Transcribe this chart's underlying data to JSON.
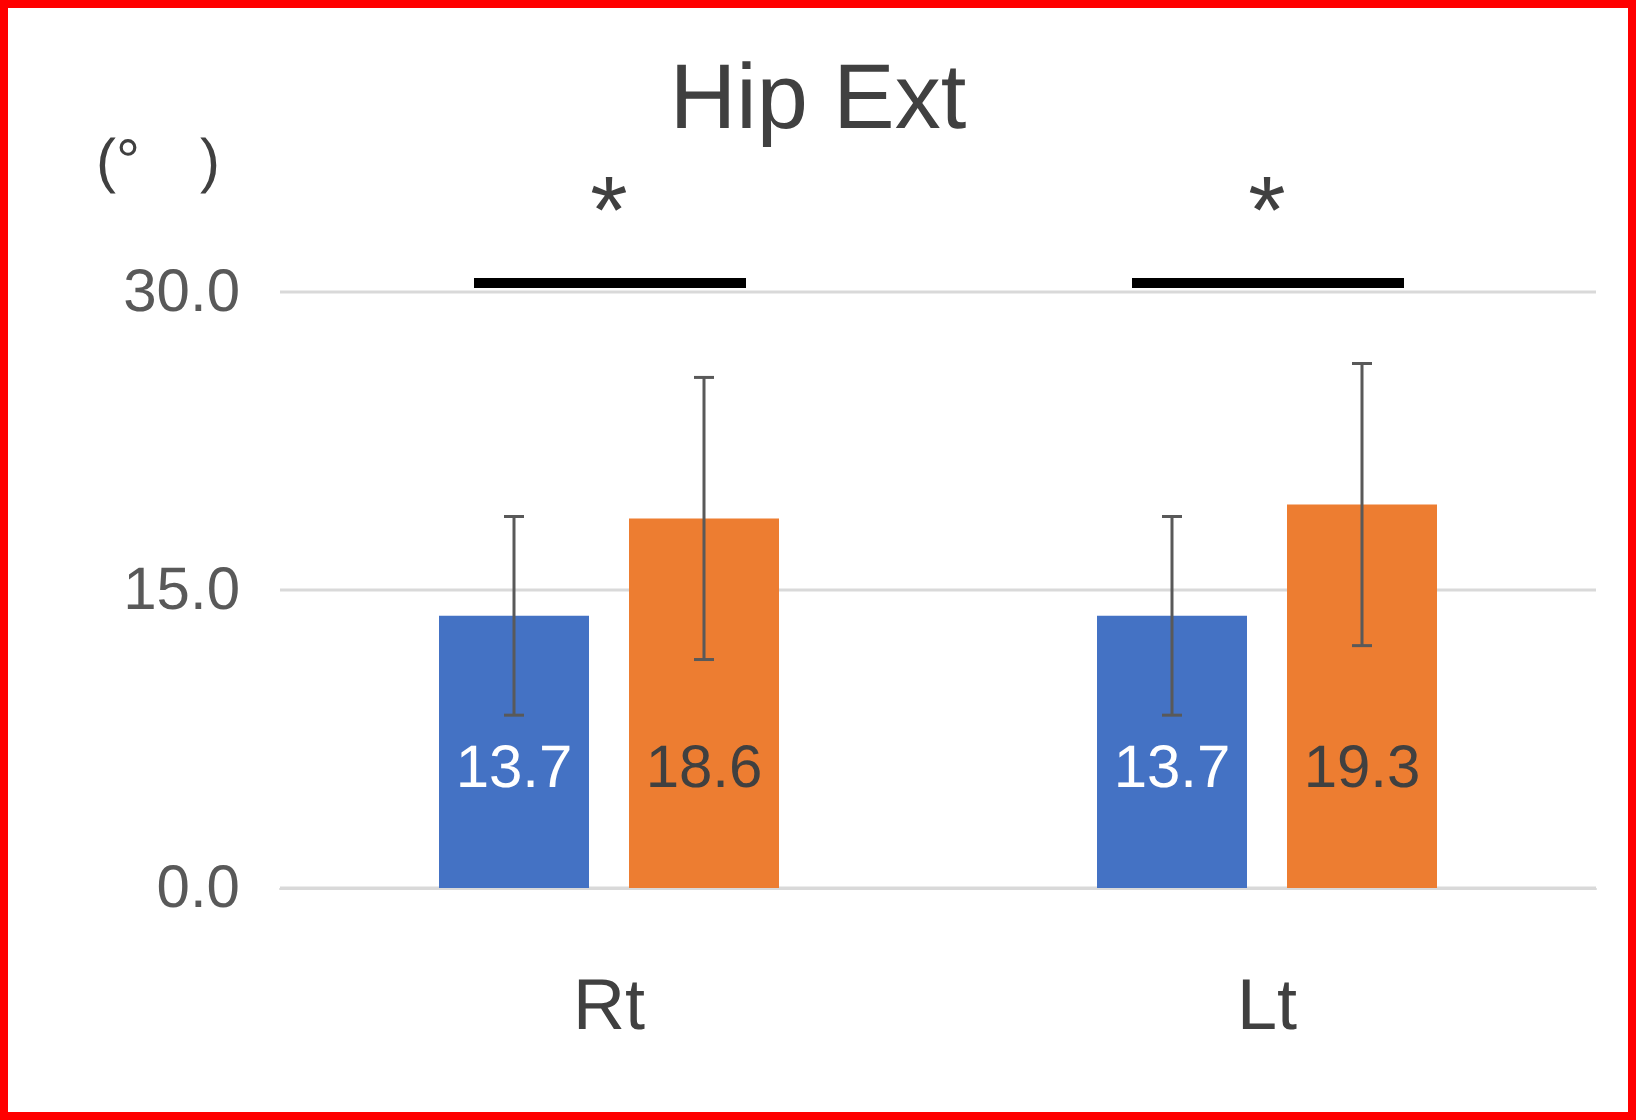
{
  "chart_data": {
    "type": "bar",
    "title": "Hip Ext",
    "ylabel": "(°　)",
    "categories": [
      "Rt",
      "Lt"
    ],
    "series": [
      {
        "color": "#4472c4",
        "values": [
          13.7,
          13.7
        ],
        "errors": [
          5.0,
          5.0
        ]
      },
      {
        "color": "#ed7d31",
        "values": [
          18.6,
          19.3
        ],
        "errors": [
          7.1,
          7.1
        ]
      }
    ],
    "ylim": [
      0,
      30
    ],
    "yticks": [
      {
        "value": 0,
        "label": "0.0"
      },
      {
        "value": 15,
        "label": "15.0"
      },
      {
        "value": 30,
        "label": "30.0"
      }
    ],
    "grid": "y",
    "data_labels": true,
    "annotations": [
      "*",
      "*"
    ]
  }
}
